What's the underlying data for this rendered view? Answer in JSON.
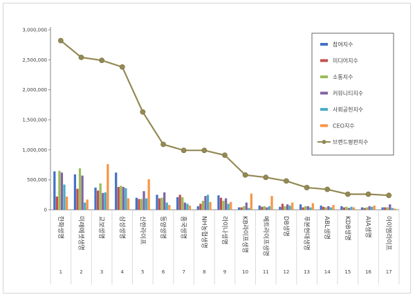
{
  "chart_data": {
    "type": "bar",
    "y_ticks": [
      "0",
      "500,000",
      "1,000,000",
      "1,500,000",
      "2,000,000",
      "2,500,000",
      "3,000,000"
    ],
    "ylim": [
      0,
      3000000
    ],
    "grid": false,
    "legend_position": "right",
    "rank_labels": [
      "1",
      "2",
      "3",
      "4",
      "5",
      "6",
      "7",
      "8",
      "9",
      "10",
      "11",
      "12",
      "13",
      "14",
      "15",
      "16",
      "17"
    ],
    "categories": [
      "한화생명",
      "미래에셋생명",
      "교보생명",
      "삼성생명",
      "신한라이프",
      "동양생명",
      "흥국생명",
      "NH농협생명",
      "라이나생명",
      "KB라이프생명",
      "메트라이프생명",
      "DB생명",
      "푸본현대생명",
      "ABL생명",
      "KDB생명",
      "AIA생명",
      "아이엠라이프"
    ],
    "series": [
      {
        "name": "참여지수",
        "color": "#4472c4",
        "values": [
          640000,
          590000,
          370000,
          620000,
          200000,
          250000,
          210000,
          60000,
          240000,
          40000,
          70000,
          50000,
          90000,
          70000,
          60000,
          40000,
          40000
        ]
      },
      {
        "name": "미디어지수",
        "color": "#c0504d",
        "values": [
          220000,
          350000,
          320000,
          380000,
          180000,
          190000,
          250000,
          100000,
          200000,
          40000,
          50000,
          100000,
          40000,
          50000,
          40000,
          30000,
          40000
        ]
      },
      {
        "name": "소통지수",
        "color": "#9bbb59",
        "values": [
          650000,
          690000,
          440000,
          400000,
          180000,
          200000,
          210000,
          150000,
          150000,
          60000,
          60000,
          60000,
          60000,
          40000,
          50000,
          40000,
          40000
        ]
      },
      {
        "name": "커뮤니티지수",
        "color": "#8064a2",
        "values": [
          620000,
          570000,
          280000,
          380000,
          310000,
          290000,
          120000,
          230000,
          190000,
          120000,
          40000,
          90000,
          60000,
          60000,
          30000,
          60000,
          90000
        ]
      },
      {
        "name": "사회공헌지수",
        "color": "#4bacc6",
        "values": [
          420000,
          120000,
          290000,
          360000,
          190000,
          120000,
          100000,
          250000,
          100000,
          30000,
          60000,
          70000,
          40000,
          40000,
          50000,
          50000,
          30000
        ]
      },
      {
        "name": "CEO지수",
        "color": "#f79646",
        "values": [
          220000,
          170000,
          760000,
          190000,
          510000,
          80000,
          70000,
          130000,
          130000,
          270000,
          230000,
          120000,
          110000,
          80000,
          40000,
          70000,
          20000
        ]
      }
    ],
    "line": {
      "name": "브랜드평판지수",
      "color": "#938953",
      "values": [
        2820000,
        2540000,
        2490000,
        2380000,
        1630000,
        1090000,
        990000,
        990000,
        910000,
        580000,
        540000,
        480000,
        370000,
        340000,
        260000,
        260000,
        240000
      ]
    }
  }
}
